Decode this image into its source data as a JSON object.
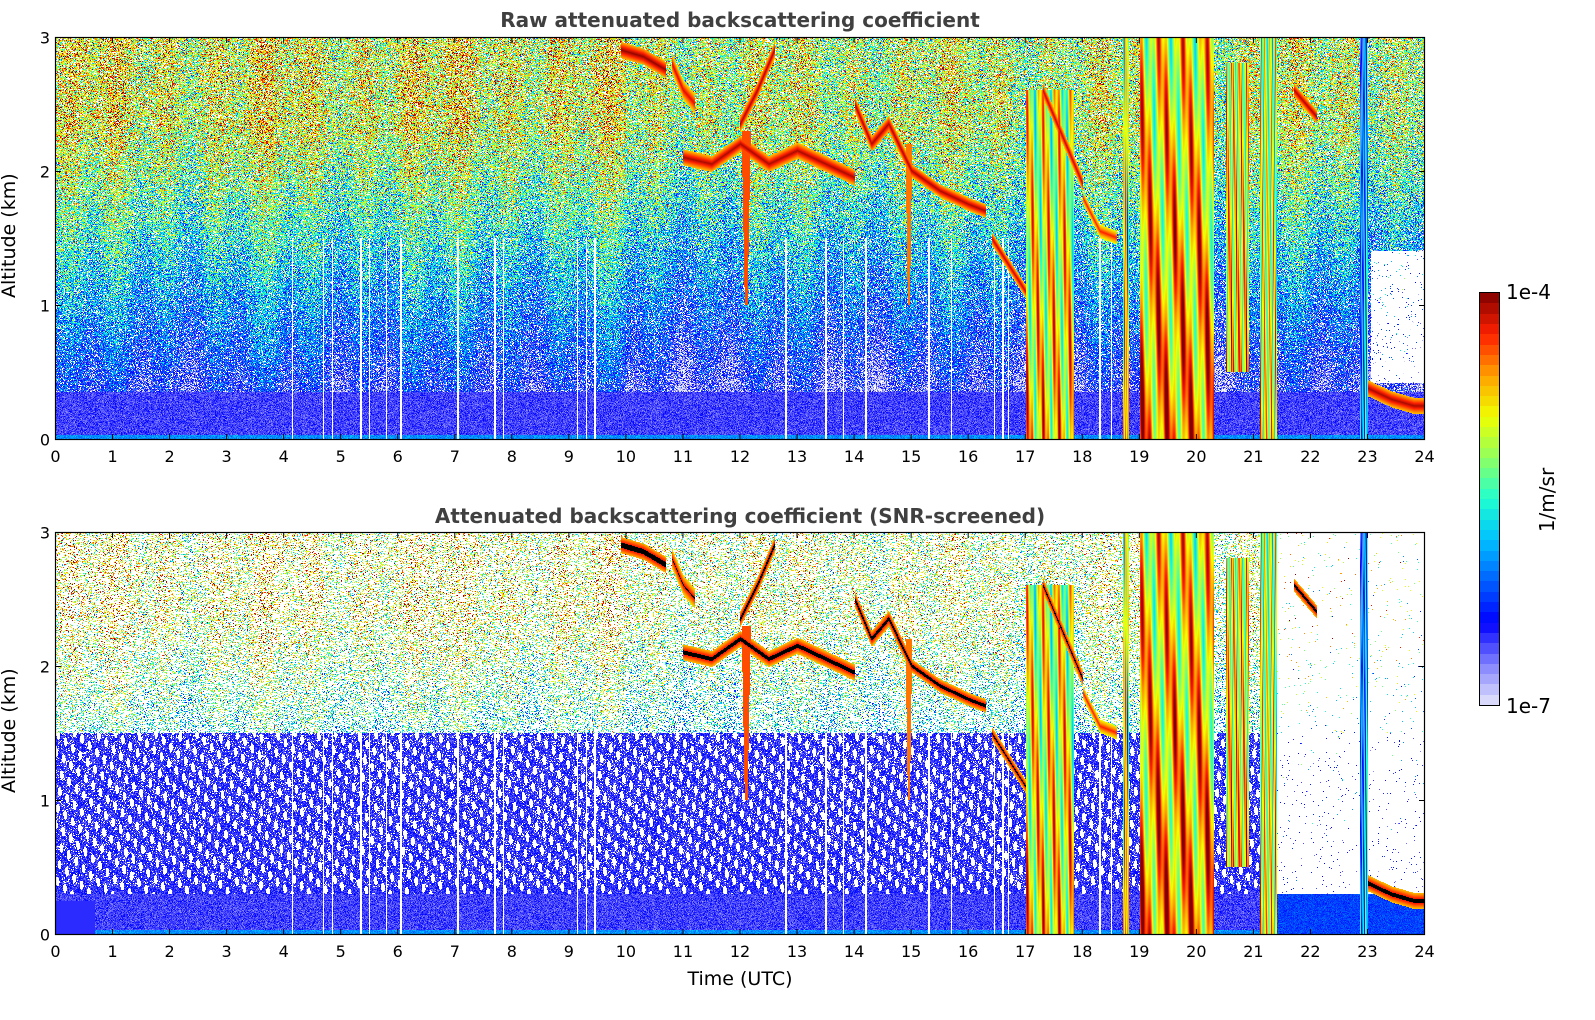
{
  "chart_data": [
    {
      "type": "heatmap",
      "title": "Raw attenuated backscattering coefficient",
      "xlabel": "",
      "ylabel": "Altitude (km)",
      "xlim": [
        0,
        24
      ],
      "ylim": [
        0,
        3
      ],
      "xticks": [
        "0",
        "1",
        "2",
        "3",
        "4",
        "5",
        "6",
        "7",
        "8",
        "9",
        "10",
        "11",
        "12",
        "13",
        "14",
        "15",
        "16",
        "17",
        "18",
        "19",
        "20",
        "21",
        "22",
        "23",
        "24"
      ],
      "yticks": [
        "0",
        "1",
        "2",
        "3"
      ],
      "screened": false
    },
    {
      "type": "heatmap",
      "title": "Attenuated backscattering coefficient (SNR-screened)",
      "xlabel": "Time (UTC)",
      "ylabel": "Altitude (km)",
      "xlim": [
        0,
        24
      ],
      "ylim": [
        0,
        3
      ],
      "xticks": [
        "0",
        "1",
        "2",
        "3",
        "4",
        "5",
        "6",
        "7",
        "8",
        "9",
        "10",
        "11",
        "12",
        "13",
        "14",
        "15",
        "16",
        "17",
        "18",
        "19",
        "20",
        "21",
        "22",
        "23",
        "24"
      ],
      "yticks": [
        "0",
        "1",
        "2",
        "3"
      ],
      "screened": true
    }
  ],
  "colorbar": {
    "label": "1/m/sr",
    "max_label": "1e-4",
    "min_label": "1e-7",
    "log_range": [
      -7,
      -4
    ],
    "colors": [
      "#e6e6fa",
      "#8080ff",
      "#0000ff",
      "#0060ff",
      "#00c0ff",
      "#20ffd0",
      "#90ff60",
      "#f0ff00",
      "#ffa000",
      "#ff2000",
      "#800000"
    ]
  },
  "features": {
    "cloud_layers": [
      {
        "t": [
          9.9,
          10.3,
          10.7
        ],
        "z": [
          2.9,
          2.85,
          2.75
        ],
        "th": 0.12,
        "v": -4.05
      },
      {
        "t": [
          10.8,
          11.0,
          11.2
        ],
        "z": [
          2.8,
          2.6,
          2.5
        ],
        "th": 0.15,
        "v": -4.2
      },
      {
        "t": [
          11.0,
          11.5,
          12.0,
          12.5,
          13.0,
          13.5,
          14.0
        ],
        "z": [
          2.1,
          2.05,
          2.2,
          2.05,
          2.15,
          2.05,
          1.95
        ],
        "th": 0.12,
        "v": -4.1
      },
      {
        "t": [
          12.0,
          12.3,
          12.6
        ],
        "z": [
          2.35,
          2.6,
          2.9
        ],
        "th": 0.12,
        "v": -4.1
      },
      {
        "t": [
          14.0,
          14.3,
          14.6,
          15.0
        ],
        "z": [
          2.5,
          2.2,
          2.35,
          2.0
        ],
        "th": 0.12,
        "v": -4.1
      },
      {
        "t": [
          15.0,
          15.5,
          16.0,
          16.3
        ],
        "z": [
          2.0,
          1.85,
          1.75,
          1.7
        ],
        "th": 0.1,
        "v": -4.1
      },
      {
        "t": [
          16.4,
          16.7,
          17.0
        ],
        "z": [
          1.5,
          1.3,
          1.1
        ],
        "th": 0.1,
        "v": -4.15
      },
      {
        "t": [
          17.3,
          17.6,
          18.0
        ],
        "z": [
          2.6,
          2.3,
          1.9
        ],
        "th": 0.12,
        "v": -4.15
      },
      {
        "t": [
          18.0,
          18.3,
          18.6
        ],
        "z": [
          1.8,
          1.55,
          1.5
        ],
        "th": 0.1,
        "v": -4.3
      },
      {
        "t": [
          21.7,
          21.9,
          22.1
        ],
        "z": [
          2.6,
          2.5,
          2.4
        ],
        "th": 0.1,
        "v": -4.1
      },
      {
        "t": [
          23.0,
          23.4,
          23.8,
          24.0
        ],
        "z": [
          0.38,
          0.3,
          0.25,
          0.25
        ],
        "th": 0.12,
        "v": -4.1
      }
    ],
    "virga": [
      {
        "t": 12.1,
        "z0": 1.0,
        "z1": 2.3,
        "w": 0.08,
        "v": -4.4
      },
      {
        "t": 14.95,
        "z0": 1.0,
        "z1": 2.2,
        "w": 0.06,
        "v": -4.5
      }
    ],
    "precip_columns": [
      {
        "t0": 17.0,
        "t1": 17.85,
        "z0": 0,
        "z1": 2.6,
        "v": -4.8
      },
      {
        "t0": 18.7,
        "t1": 18.8,
        "z0": 0,
        "z1": 3.0,
        "v": -4.7
      },
      {
        "t0": 19.0,
        "t1": 20.3,
        "z0": 0,
        "z1": 3.0,
        "v": -4.6
      },
      {
        "t0": 20.5,
        "t1": 20.9,
        "z0": 0.5,
        "z1": 2.8,
        "v": -4.7
      },
      {
        "t0": 21.1,
        "t1": 21.4,
        "z0": 0,
        "z1": 3.0,
        "v": -4.9
      },
      {
        "t0": 22.85,
        "t1": 23.0,
        "z0": 0,
        "z1": 3.0,
        "v": -5.7
      }
    ],
    "dropout_times": [
      4.15,
      4.7,
      4.85,
      5.35,
      5.5,
      5.8,
      6.05,
      7.05,
      7.7,
      7.85,
      9.15,
      9.3,
      9.45,
      12.8,
      13.5,
      13.8,
      14.2,
      15.3,
      15.7,
      16.45,
      16.6,
      16.7,
      18.3,
      18.5
    ]
  }
}
